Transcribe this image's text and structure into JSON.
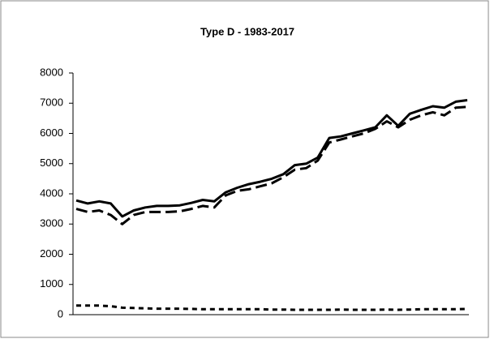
{
  "chart_data": {
    "type": "line",
    "title": "Type D - 1983-2017",
    "ylim": [
      0,
      8000
    ],
    "yticks": [
      0,
      1000,
      2000,
      3000,
      4000,
      5000,
      6000,
      7000,
      8000
    ],
    "series": [
      {
        "color": "#000000",
        "dash": "solid",
        "values": [
          3780,
          3680,
          3750,
          3680,
          3250,
          3450,
          3550,
          3600,
          3600,
          3620,
          3700,
          3800,
          3750,
          4050,
          4200,
          4320,
          4400,
          4500,
          4650,
          4950,
          5000,
          5200,
          5850,
          5900,
          6000,
          6100,
          6200,
          6600,
          6250,
          6650,
          6780,
          6900,
          6850,
          7050,
          7100
        ]
      },
      {
        "color": "#000000",
        "dash": "long",
        "values": [
          3500,
          3400,
          3450,
          3300,
          3000,
          3300,
          3400,
          3400,
          3400,
          3420,
          3500,
          3600,
          3550,
          3950,
          4100,
          4150,
          4250,
          4350,
          4550,
          4800,
          4850,
          5100,
          5700,
          5800,
          5900,
          6000,
          6150,
          6400,
          6200,
          6450,
          6600,
          6700,
          6600,
          6850,
          6880
        ]
      },
      {
        "color": "#000000",
        "dash": "short",
        "values": [
          300,
          300,
          300,
          280,
          230,
          220,
          210,
          200,
          200,
          200,
          190,
          180,
          180,
          180,
          180,
          180,
          180,
          170,
          170,
          160,
          160,
          160,
          160,
          170,
          160,
          160,
          160,
          170,
          160,
          170,
          180,
          180,
          180,
          180,
          190
        ]
      }
    ]
  }
}
